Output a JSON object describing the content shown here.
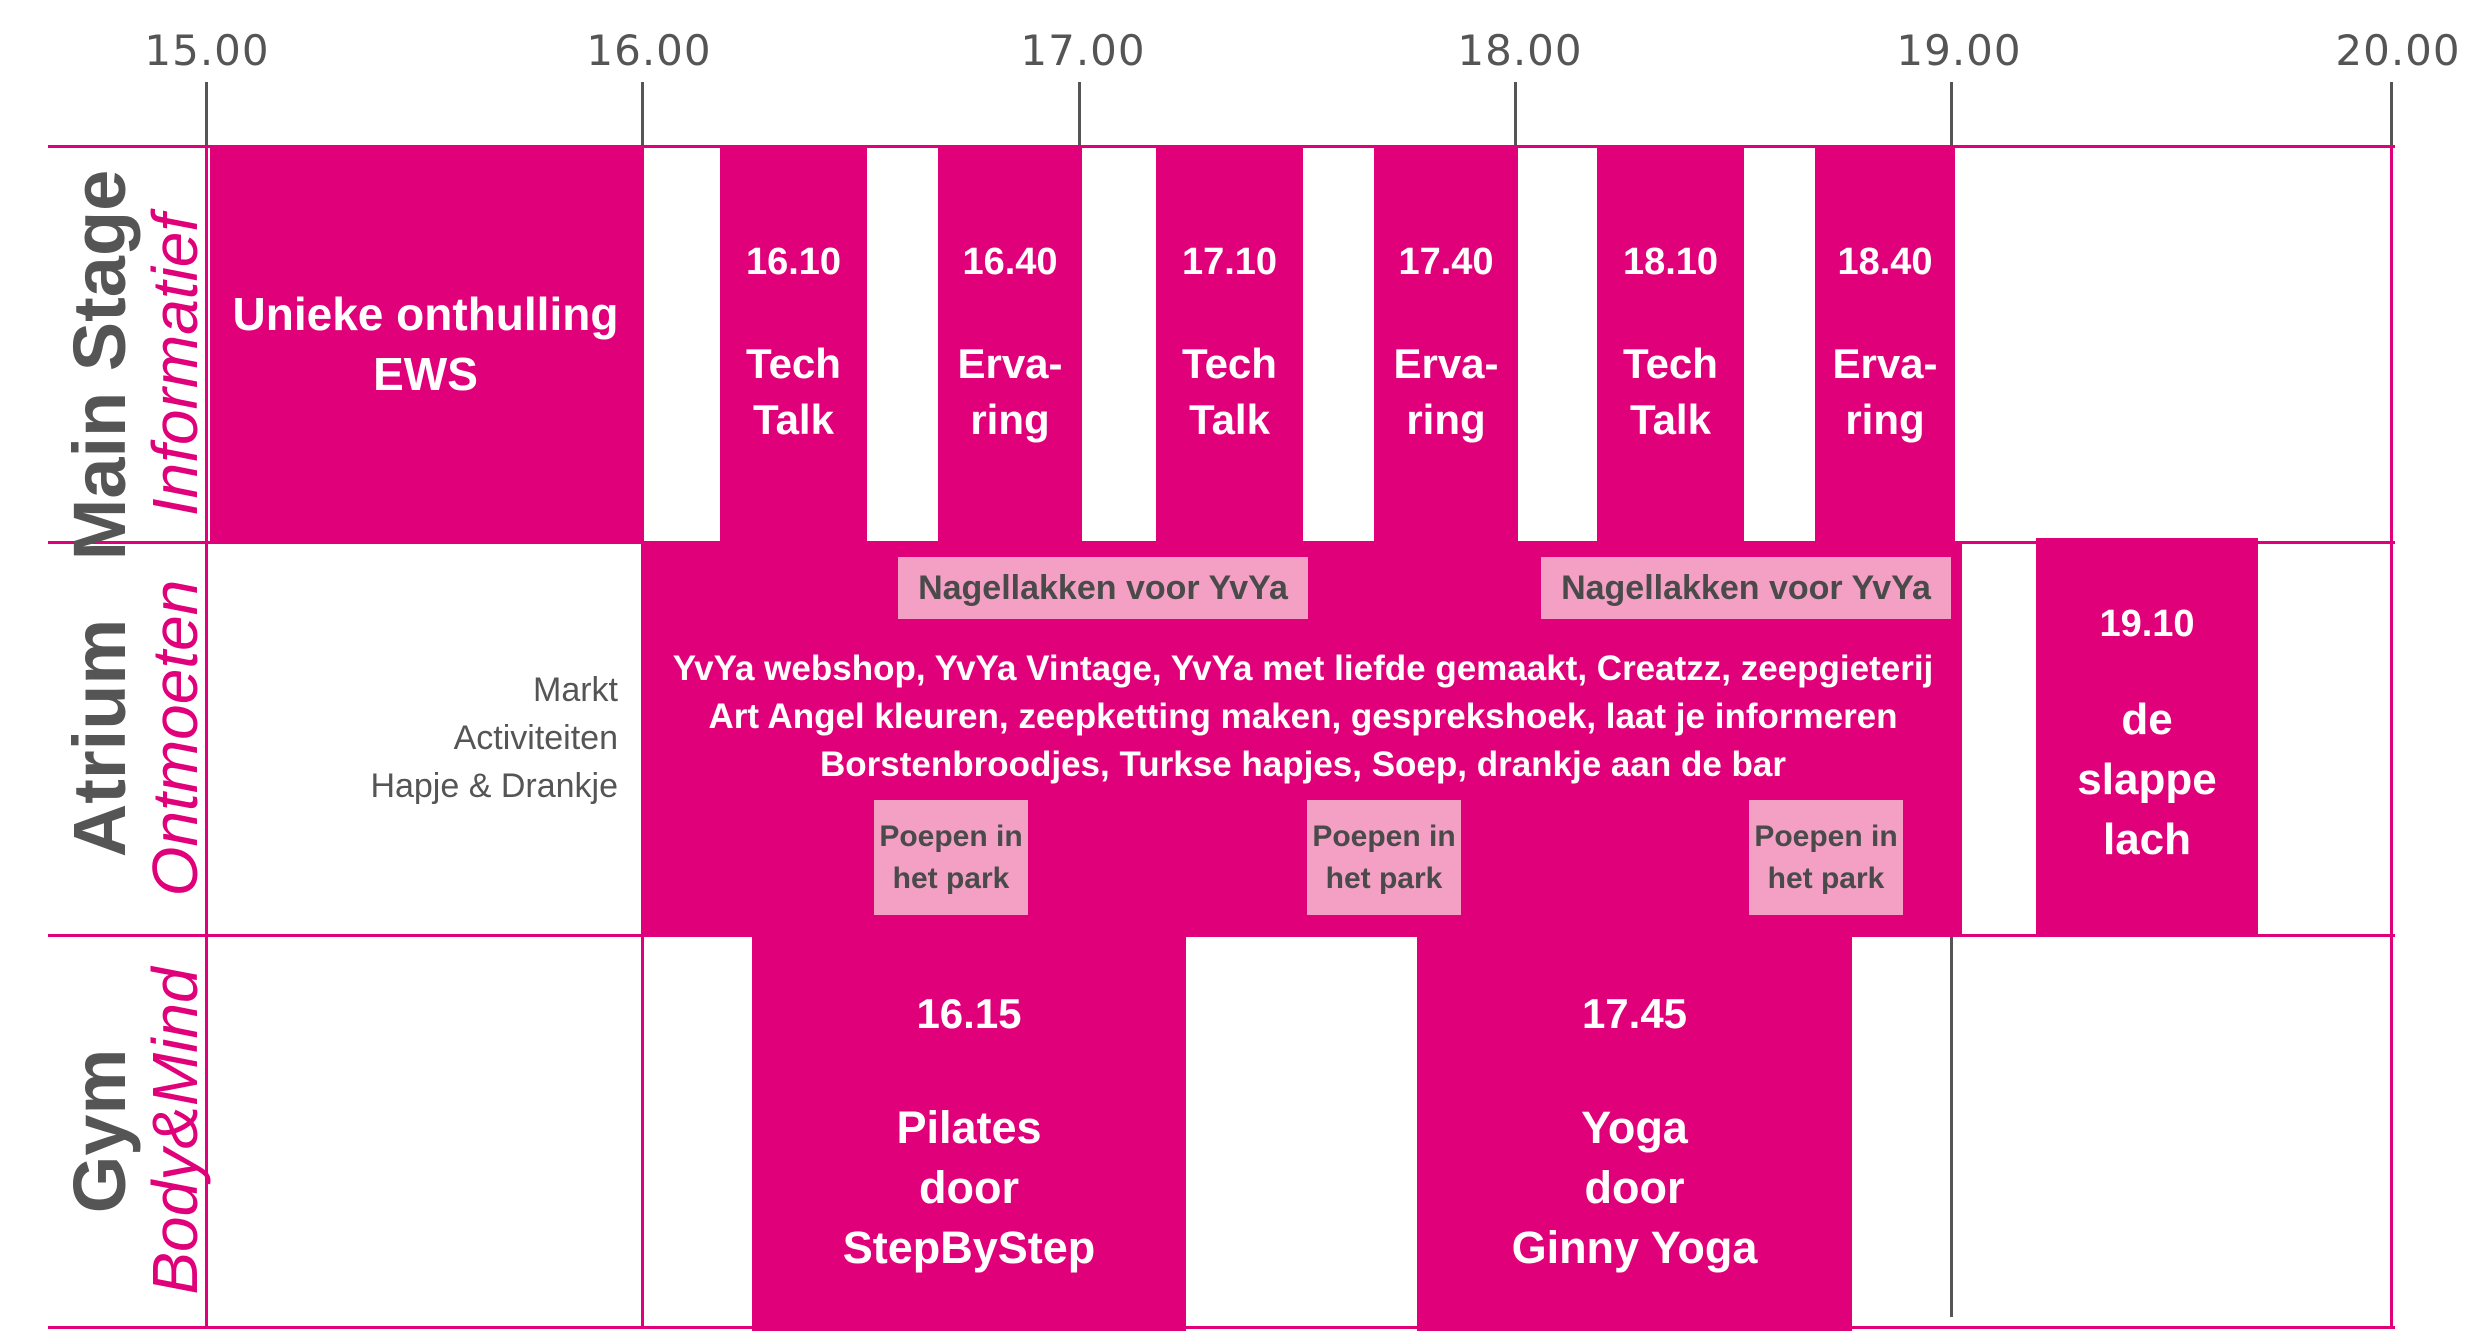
{
  "times": [
    "15.00",
    "16.00",
    "17.00",
    "18.00",
    "19.00",
    "20.00"
  ],
  "rows": {
    "main": {
      "title": "Main Stage",
      "subtitle": "Informatief"
    },
    "atrium": {
      "title": "Atrium",
      "subtitle": "Ontmoeten"
    },
    "gym": {
      "title": "Gym",
      "subtitle": "Body&Mind"
    }
  },
  "main_stage": {
    "opening": {
      "line1": "Unieke onthulling",
      "line2": "EWS"
    },
    "sessions": [
      {
        "time": "16.10",
        "line1": "Tech",
        "line2": "Talk"
      },
      {
        "time": "16.40",
        "line1": "Erva-",
        "line2": "ring"
      },
      {
        "time": "17.10",
        "line1": "Tech",
        "line2": "Talk"
      },
      {
        "time": "17.40",
        "line1": "Erva-",
        "line2": "ring"
      },
      {
        "time": "18.10",
        "line1": "Tech",
        "line2": "Talk"
      },
      {
        "time": "18.40",
        "line1": "Erva-",
        "line2": "ring"
      }
    ]
  },
  "atrium": {
    "legend": [
      "Markt",
      "Activiteiten",
      "Hapje & Drankje"
    ],
    "nail": [
      "Nagellakken voor YvYa",
      "Nagellakken voor YvYa"
    ],
    "lines": [
      "YvYa webshop, YvYa Vintage, YvYa met liefde gemaakt, Creatzz, zeepgieterij",
      "Art Angel kleuren, zeepketting maken, gesprekshoek, laat je informeren",
      "Borstenbroodjes, Turkse hapjes, Soep, drankje aan de bar"
    ],
    "poepen": [
      {
        "line1": "Poepen in",
        "line2": "het park"
      },
      {
        "line1": "Poepen in",
        "line2": "het park"
      },
      {
        "line1": "Poepen in",
        "line2": "het park"
      }
    ],
    "late": {
      "time": "19.10",
      "line1": "de",
      "line2": "slappe",
      "line3": "lach"
    }
  },
  "gym": {
    "sessions": [
      {
        "time": "16.15",
        "line1": "Pilates",
        "line2": "door",
        "line3": "StepByStep"
      },
      {
        "time": "17.45",
        "line1": "Yoga",
        "line2": "door",
        "line3": "Ginny Yoga"
      }
    ]
  },
  "colors": {
    "accent": "#e0007a",
    "soft": "#f3a0c4",
    "text": "#555555"
  }
}
